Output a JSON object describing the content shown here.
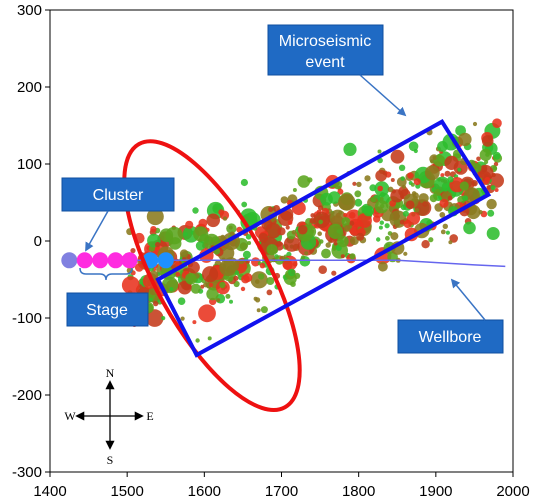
{
  "chart_data": {
    "type": "scatter",
    "title": "",
    "xlabel": "",
    "ylabel": "",
    "xlim": [
      1400,
      2000
    ],
    "ylim": [
      -300,
      300
    ],
    "x_ticks": [
      "1400",
      "1500",
      "1600",
      "1700",
      "1800",
      "1900",
      "2000"
    ],
    "y_ticks": [
      "300",
      "200",
      "100",
      "0",
      "-100",
      "-200",
      "-300"
    ],
    "grid": false,
    "series": [
      {
        "category": "microseismic events",
        "colors": [
          "#e8321e",
          "#2ebd2e",
          "#8a7a1e",
          "#c43a1a",
          "#5aa51e"
        ],
        "distribution": {
          "center_line": {
            "x0": 1520,
            "y0": -50,
            "x1": 1950,
            "y1": 80
          },
          "x_range": [
            1500,
            1980
          ],
          "spread_y": 45,
          "count": 700,
          "size_range": [
            2,
            9
          ]
        }
      },
      {
        "category": "stage perforations",
        "points": [
          {
            "x": 1425,
            "y": -25,
            "color": "#8080e0"
          },
          {
            "x": 1445,
            "y": -25,
            "color": "#ff2be0"
          },
          {
            "x": 1465,
            "y": -25,
            "color": "#ff2be0"
          },
          {
            "x": 1485,
            "y": -25,
            "color": "#ff2be0"
          },
          {
            "x": 1503,
            "y": -25,
            "color": "#ff2be0"
          },
          {
            "x": 1530,
            "y": -25,
            "color": "#1e90ff"
          },
          {
            "x": 1550,
            "y": -25,
            "color": "#1e90ff"
          }
        ],
        "size": 8
      }
    ],
    "wellbore": {
      "color": "#6666ee",
      "points": [
        [
          1420,
          -25
        ],
        [
          1600,
          -25
        ],
        [
          1750,
          -25
        ],
        [
          1850,
          -25
        ],
        [
          1950,
          -31
        ],
        [
          1990,
          -33
        ]
      ]
    },
    "overlays": {
      "ellipse": {
        "color": "#ee1111",
        "cx": 1610,
        "cy": -45,
        "rx": 195,
        "ry": 72,
        "rotation_deg": 61
      },
      "rectangle": {
        "color": "#1111ee",
        "corners": [
          [
            1540,
            -50
          ],
          [
            1908,
            155
          ],
          [
            1968,
            60
          ],
          [
            1590,
            -148
          ]
        ]
      }
    },
    "annotations": [
      {
        "text_lines": [
          "Microseismic",
          "event"
        ],
        "arrow_to": [
          1843,
          160
        ]
      },
      {
        "text_lines": [
          "Cluster"
        ],
        "arrow_to": [
          1444,
          -18
        ]
      },
      {
        "text_lines": [
          "Stage"
        ],
        "arrow_to": null
      },
      {
        "text_lines": [
          "Wellbore"
        ],
        "arrow_to": [
          1932,
          -28
        ]
      }
    ],
    "compass": {
      "N": "N",
      "S": "S",
      "E": "E",
      "W": "W"
    }
  }
}
